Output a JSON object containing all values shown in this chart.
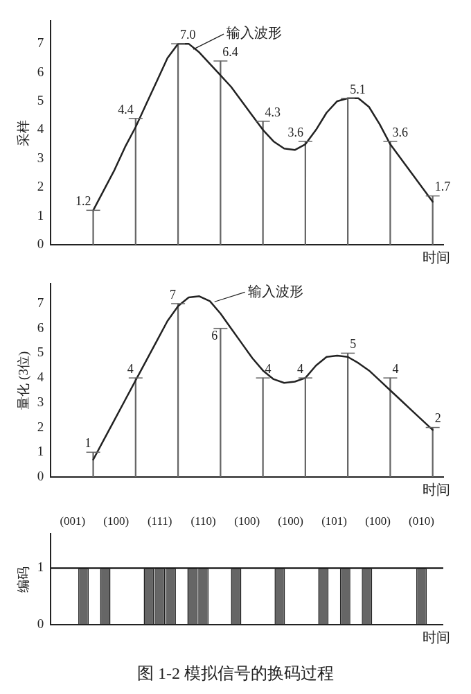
{
  "chart_data": [
    {
      "type": "line",
      "ylabel": "采样",
      "xlabel": "时间",
      "categories": [
        null,
        null,
        null,
        null,
        null,
        null,
        null,
        null,
        null,
        null,
        null,
        null,
        null,
        null,
        null,
        null,
        null,
        null,
        null,
        null,
        null,
        null,
        null,
        null,
        null,
        null,
        null,
        null,
        null,
        null,
        null,
        null,
        null,
        null,
        null,
        null,
        null,
        null
      ],
      "ylim": [
        0,
        7.8
      ],
      "yticks": [
        0,
        1,
        2,
        3,
        4,
        5,
        6,
        7
      ],
      "tick_labels": "y",
      "marker": "none",
      "series": [
        {
          "name": "输入波形",
          "color": "#222222",
          "values": [
            null,
            null,
            null,
            null,
            1.2,
            1.9,
            2.6,
            3.4,
            4.1,
            4.9,
            5.7,
            6.5,
            7.0,
            7.0,
            6.7,
            6.3,
            5.9,
            5.5,
            5.0,
            4.5,
            4.0,
            3.6,
            3.35,
            3.3,
            3.5,
            4.0,
            4.6,
            5.0,
            5.1,
            5.1,
            4.8,
            4.2,
            3.5,
            3.0,
            2.5,
            2.0,
            1.5,
            null
          ]
        },
        {
          "type": "bar",
          "color": "#666666",
          "values": [
            null,
            null,
            null,
            null,
            1.2,
            null,
            null,
            null,
            4.4,
            null,
            null,
            null,
            7.0,
            null,
            null,
            null,
            6.4,
            null,
            null,
            null,
            4.3,
            null,
            null,
            null,
            3.6,
            null,
            null,
            null,
            5.1,
            null,
            null,
            null,
            3.6,
            null,
            null,
            null,
            1.7,
            null
          ],
          "value_labels": [
            null,
            null,
            null,
            null,
            "1.2",
            null,
            null,
            null,
            "4.4",
            null,
            null,
            null,
            "7.0",
            null,
            null,
            null,
            "6.4",
            null,
            null,
            null,
            "4.3",
            null,
            null,
            null,
            "3.6",
            null,
            null,
            null,
            "5.1",
            null,
            null,
            null,
            "3.6",
            null,
            null,
            null,
            "1.7",
            null
          ]
        }
      ]
    },
    {
      "type": "line",
      "ylabel": "量化 (3位)",
      "xlabel": "时间",
      "categories": [
        null,
        null,
        null,
        null,
        null,
        null,
        null,
        null,
        null,
        null,
        null,
        null,
        null,
        null,
        null,
        null,
        null,
        null,
        null,
        null,
        null,
        null,
        null,
        null,
        null,
        null,
        null,
        null,
        null,
        null,
        null,
        null,
        null,
        null,
        null,
        null,
        null,
        null
      ],
      "ylim": [
        0,
        7.8
      ],
      "yticks": [
        0,
        1,
        2,
        3,
        4,
        5,
        6,
        7
      ],
      "tick_labels": "y",
      "marker": "none",
      "series": [
        {
          "name": "输入波形",
          "color": "#222222",
          "values": [
            null,
            null,
            null,
            null,
            0.7,
            1.5,
            2.3,
            3.1,
            3.9,
            4.7,
            5.5,
            6.3,
            6.9,
            7.25,
            7.3,
            7.1,
            6.6,
            6.0,
            5.4,
            4.8,
            4.3,
            3.95,
            3.8,
            3.85,
            4.0,
            4.5,
            4.85,
            4.9,
            4.85,
            4.6,
            4.3,
            3.9,
            3.5,
            3.1,
            2.7,
            2.3,
            1.9,
            null
          ]
        },
        {
          "type": "bar",
          "color": "#666666",
          "values": [
            null,
            null,
            null,
            null,
            1,
            null,
            null,
            null,
            4,
            null,
            null,
            null,
            7,
            null,
            null,
            null,
            6,
            null,
            null,
            null,
            4,
            null,
            null,
            null,
            4,
            null,
            null,
            null,
            5,
            null,
            null,
            null,
            4,
            null,
            null,
            null,
            2,
            null
          ],
          "value_labels": [
            null,
            null,
            null,
            null,
            "1",
            null,
            null,
            null,
            "4",
            null,
            null,
            null,
            "7",
            null,
            null,
            null,
            "6",
            null,
            null,
            null,
            "4",
            null,
            null,
            null,
            "4",
            null,
            null,
            null,
            "5",
            null,
            null,
            null,
            "4",
            null,
            null,
            null,
            "2",
            null
          ]
        }
      ]
    },
    {
      "type": "bar",
      "ylabel": "编码",
      "xlabel": "时间",
      "categories": [
        "(001)",
        "(100)",
        "(111)",
        "(110)",
        "(100)",
        "(100)",
        "(101)",
        "(100)",
        "(010)"
      ],
      "ylim": [
        0,
        1.6
      ],
      "yticks": [
        0,
        1
      ],
      "ref_lines": [
        {
          "axis": "y",
          "value": 1,
          "color": "#222222"
        }
      ],
      "annotations": [
        "图 1-2    模拟信号的换码过程"
      ],
      "series": [
        {
          "color": "#666666",
          "values": [
            0,
            1,
            1,
            1,
            1,
            1,
            1,
            1,
            0
          ]
        },
        {
          "color": "#666666",
          "values": [
            0,
            0,
            1,
            1,
            0,
            0,
            0,
            0,
            1
          ]
        },
        {
          "color": "#666666",
          "values": [
            1,
            0,
            1,
            0,
            0,
            0,
            1,
            0,
            0
          ]
        }
      ]
    }
  ]
}
